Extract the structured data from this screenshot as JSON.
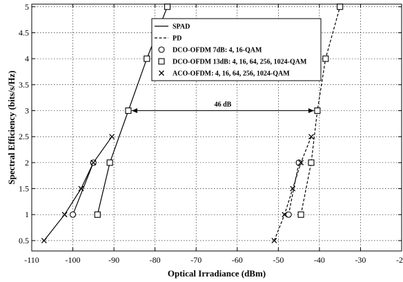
{
  "chart_data": {
    "type": "line",
    "xlabel": "Optical Irradiance (dBm)",
    "ylabel": "Spectral Efficiency (bits/s/Hz)",
    "xlim": [
      -110,
      -20
    ],
    "ylim": [
      0.3,
      5.05
    ],
    "x_ticks": [
      -110,
      -100,
      -90,
      -80,
      -70,
      -60,
      -50,
      -40,
      -30,
      -20
    ],
    "y_ticks": [
      0.5,
      1,
      1.5,
      2,
      2.5,
      3,
      3.5,
      4,
      4.5,
      5
    ],
    "grid": true,
    "legend_position": "top-center",
    "legend": [
      {
        "label": "SPAD",
        "style": "solid-line"
      },
      {
        "label": "PD",
        "style": "dashed-line"
      },
      {
        "label": "DCO-OFDM 7dB: 4, 16-QAM",
        "style": "circle"
      },
      {
        "label": "DCO-OFDM 13dB: 4, 16, 64, 256, 1024-QAM",
        "style": "square"
      },
      {
        "label": "ACO-OFDM: 4, 16, 64, 256, 1024-QAM",
        "style": "cross"
      }
    ],
    "series": [
      {
        "detector": "SPAD",
        "modulation": "DCO-OFDM 7dB",
        "line": "solid",
        "marker": "circle",
        "points": [
          [
            -100,
            1
          ],
          [
            -95,
            2
          ]
        ]
      },
      {
        "detector": "SPAD",
        "modulation": "DCO-OFDM 13dB",
        "line": "solid",
        "marker": "square",
        "points": [
          [
            -94,
            1
          ],
          [
            -91,
            2
          ],
          [
            -86.5,
            3
          ],
          [
            -82,
            4
          ],
          [
            -77,
            5
          ]
        ]
      },
      {
        "detector": "SPAD",
        "modulation": "ACO-OFDM",
        "line": "solid",
        "marker": "cross",
        "points": [
          [
            -107,
            0.5
          ],
          [
            -102,
            1
          ],
          [
            -98,
            1.5
          ],
          [
            -95,
            2
          ],
          [
            -90.5,
            2.5
          ]
        ]
      },
      {
        "detector": "PD",
        "modulation": "DCO-OFDM 7dB",
        "line": "dashed",
        "marker": "circle",
        "points": [
          [
            -47.5,
            1
          ],
          [
            -45,
            2
          ]
        ]
      },
      {
        "detector": "PD",
        "modulation": "DCO-OFDM 13dB",
        "line": "dashed",
        "marker": "square",
        "points": [
          [
            -44.5,
            1
          ],
          [
            -42,
            2
          ],
          [
            -40.5,
            3
          ],
          [
            -38.5,
            4
          ],
          [
            -35,
            5
          ]
        ]
      },
      {
        "detector": "PD",
        "modulation": "ACO-OFDM",
        "line": "dashed",
        "marker": "cross",
        "points": [
          [
            -51,
            0.5
          ],
          [
            -48.5,
            1
          ],
          [
            -46.5,
            1.5
          ],
          [
            -44.5,
            2
          ],
          [
            -42,
            2.5
          ]
        ]
      }
    ],
    "annotations": [
      {
        "text": "46 dB",
        "type": "double-arrow",
        "from": [
          -86.5,
          3
        ],
        "to": [
          -40.5,
          3
        ]
      }
    ]
  }
}
